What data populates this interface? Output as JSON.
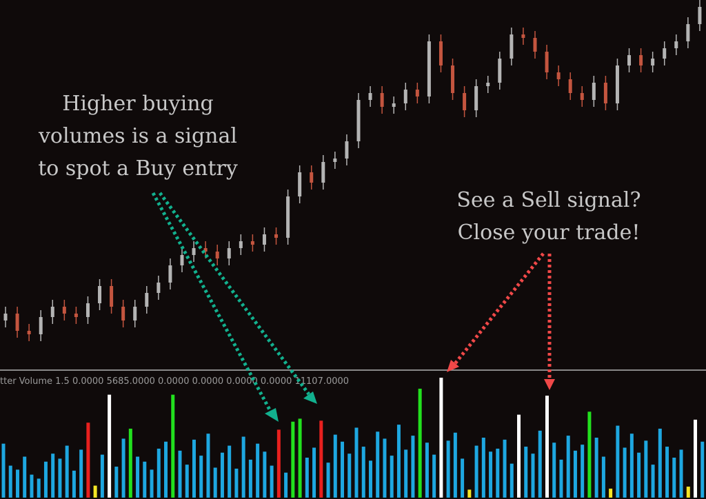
{
  "chart_data": [
    {
      "type": "candlestick",
      "open": [
        14,
        16,
        11,
        10,
        15,
        18,
        16,
        15,
        19,
        24,
        18,
        14,
        18,
        22,
        25,
        30,
        33,
        35,
        34,
        32,
        35,
        37,
        36,
        39,
        38,
        50,
        57,
        54,
        60,
        61,
        66,
        78,
        80,
        76,
        77,
        81,
        79,
        95,
        88,
        80,
        75,
        82,
        83,
        90,
        97,
        96,
        92,
        86,
        84,
        80,
        78,
        83,
        77,
        88,
        91,
        88,
        90,
        93,
        95,
        100
      ],
      "high": [
        18,
        18,
        13,
        17,
        20,
        20,
        18,
        21,
        26,
        26,
        20,
        20,
        24,
        27,
        32,
        35,
        37,
        37,
        36,
        37,
        39,
        39,
        41,
        41,
        52,
        59,
        59,
        62,
        63,
        68,
        80,
        82,
        82,
        79,
        83,
        83,
        97,
        97,
        90,
        82,
        84,
        85,
        92,
        99,
        99,
        98,
        94,
        88,
        86,
        82,
        85,
        85,
        90,
        93,
        93,
        92,
        95,
        97,
        102,
        107
      ],
      "low": [
        12,
        9,
        8,
        8,
        13,
        14,
        13,
        13,
        17,
        16,
        12,
        12,
        16,
        20,
        23,
        28,
        31,
        32,
        30,
        30,
        33,
        34,
        34,
        36,
        36,
        48,
        52,
        52,
        58,
        59,
        64,
        76,
        74,
        74,
        75,
        77,
        77,
        86,
        78,
        73,
        73,
        80,
        81,
        88,
        94,
        90,
        84,
        82,
        78,
        76,
        76,
        75,
        75,
        86,
        86,
        86,
        88,
        91,
        93,
        98
      ],
      "close": [
        16,
        11,
        10,
        15,
        18,
        16,
        15,
        19,
        24,
        18,
        14,
        18,
        22,
        25,
        30,
        33,
        35,
        34,
        32,
        35,
        37,
        36,
        39,
        38,
        50,
        57,
        54,
        60,
        61,
        66,
        78,
        80,
        76,
        77,
        81,
        79,
        95,
        88,
        80,
        75,
        82,
        83,
        90,
        97,
        96,
        92,
        86,
        84,
        80,
        78,
        83,
        77,
        88,
        91,
        88,
        90,
        93,
        95,
        100,
        105
      ],
      "up_color": "#b4b4b4",
      "down_color": "#c4553f",
      "ylim": [
        0,
        107
      ]
    },
    {
      "type": "bar",
      "label": "tter Volume 1.5 0.0000 5685.0000 0.0000 0.0000 0.0000 0.0000 11107.0000",
      "values": [
        5400,
        3200,
        2800,
        4100,
        2300,
        1900,
        3600,
        4400,
        3900,
        5200,
        2700,
        4800,
        7500,
        1200,
        4300,
        10300,
        3100,
        5900,
        6900,
        4100,
        3600,
        2800,
        4900,
        5600,
        10300,
        4700,
        3300,
        5800,
        4200,
        6400,
        3000,
        4500,
        5200,
        2900,
        6100,
        3800,
        5400,
        4600,
        3200,
        6800,
        2500,
        7600,
        7900,
        4000,
        5000,
        7700,
        3500,
        6300,
        5600,
        4400,
        7000,
        5100,
        3700,
        6600,
        5900,
        4200,
        7300,
        4800,
        6200,
        10900,
        5500,
        4300,
        12000,
        5700,
        6500,
        3900,
        800,
        5200,
        6000,
        4600,
        4900,
        5800,
        3400,
        8300,
        5100,
        4400,
        6700,
        10200,
        5500,
        3800,
        6200,
        4700,
        5300,
        8600,
        6000,
        4100,
        900,
        7200,
        5000,
        6400,
        4500,
        5700,
        3300,
        6900,
        5100,
        4000,
        4800,
        1100,
        7800,
        5600
      ],
      "colors": [
        "#1ea7e0",
        "#1ea7e0",
        "#1ea7e0",
        "#1ea7e0",
        "#1ea7e0",
        "#1ea7e0",
        "#1ea7e0",
        "#1ea7e0",
        "#1ea7e0",
        "#1ea7e0",
        "#1ea7e0",
        "#1ea7e0",
        "#e8201e",
        "#f5e625",
        "#1ea7e0",
        "#ffffff",
        "#1ea7e0",
        "#1ea7e0",
        "#22e01e",
        "#1ea7e0",
        "#1ea7e0",
        "#1ea7e0",
        "#1ea7e0",
        "#1ea7e0",
        "#22e01e",
        "#1ea7e0",
        "#1ea7e0",
        "#1ea7e0",
        "#1ea7e0",
        "#1ea7e0",
        "#1ea7e0",
        "#1ea7e0",
        "#1ea7e0",
        "#1ea7e0",
        "#1ea7e0",
        "#1ea7e0",
        "#1ea7e0",
        "#1ea7e0",
        "#1ea7e0",
        "#e8201e",
        "#1ea7e0",
        "#22e01e",
        "#22e01e",
        "#1ea7e0",
        "#1ea7e0",
        "#e8201e",
        "#1ea7e0",
        "#1ea7e0",
        "#1ea7e0",
        "#1ea7e0",
        "#1ea7e0",
        "#1ea7e0",
        "#1ea7e0",
        "#1ea7e0",
        "#1ea7e0",
        "#1ea7e0",
        "#1ea7e0",
        "#1ea7e0",
        "#1ea7e0",
        "#22e01e",
        "#1ea7e0",
        "#1ea7e0",
        "#ffffff",
        "#1ea7e0",
        "#1ea7e0",
        "#1ea7e0",
        "#f5e625",
        "#1ea7e0",
        "#1ea7e0",
        "#1ea7e0",
        "#1ea7e0",
        "#1ea7e0",
        "#1ea7e0",
        "#ffffff",
        "#1ea7e0",
        "#1ea7e0",
        "#1ea7e0",
        "#ffffff",
        "#1ea7e0",
        "#1ea7e0",
        "#1ea7e0",
        "#1ea7e0",
        "#1ea7e0",
        "#22e01e",
        "#1ea7e0",
        "#1ea7e0",
        "#f5e625",
        "#1ea7e0",
        "#1ea7e0",
        "#1ea7e0",
        "#1ea7e0",
        "#1ea7e0",
        "#1ea7e0",
        "#1ea7e0",
        "#1ea7e0",
        "#1ea7e0",
        "#1ea7e0",
        "#f5e625",
        "#ffffff",
        "#1ea7e0"
      ],
      "ylim": [
        0,
        12000
      ]
    }
  ],
  "annotations": {
    "buy": [
      "Higher buying",
      "volumes is a signal",
      "to spot a Buy entry"
    ],
    "sell": [
      "See a Sell signal?",
      "Close your trade!"
    ]
  }
}
